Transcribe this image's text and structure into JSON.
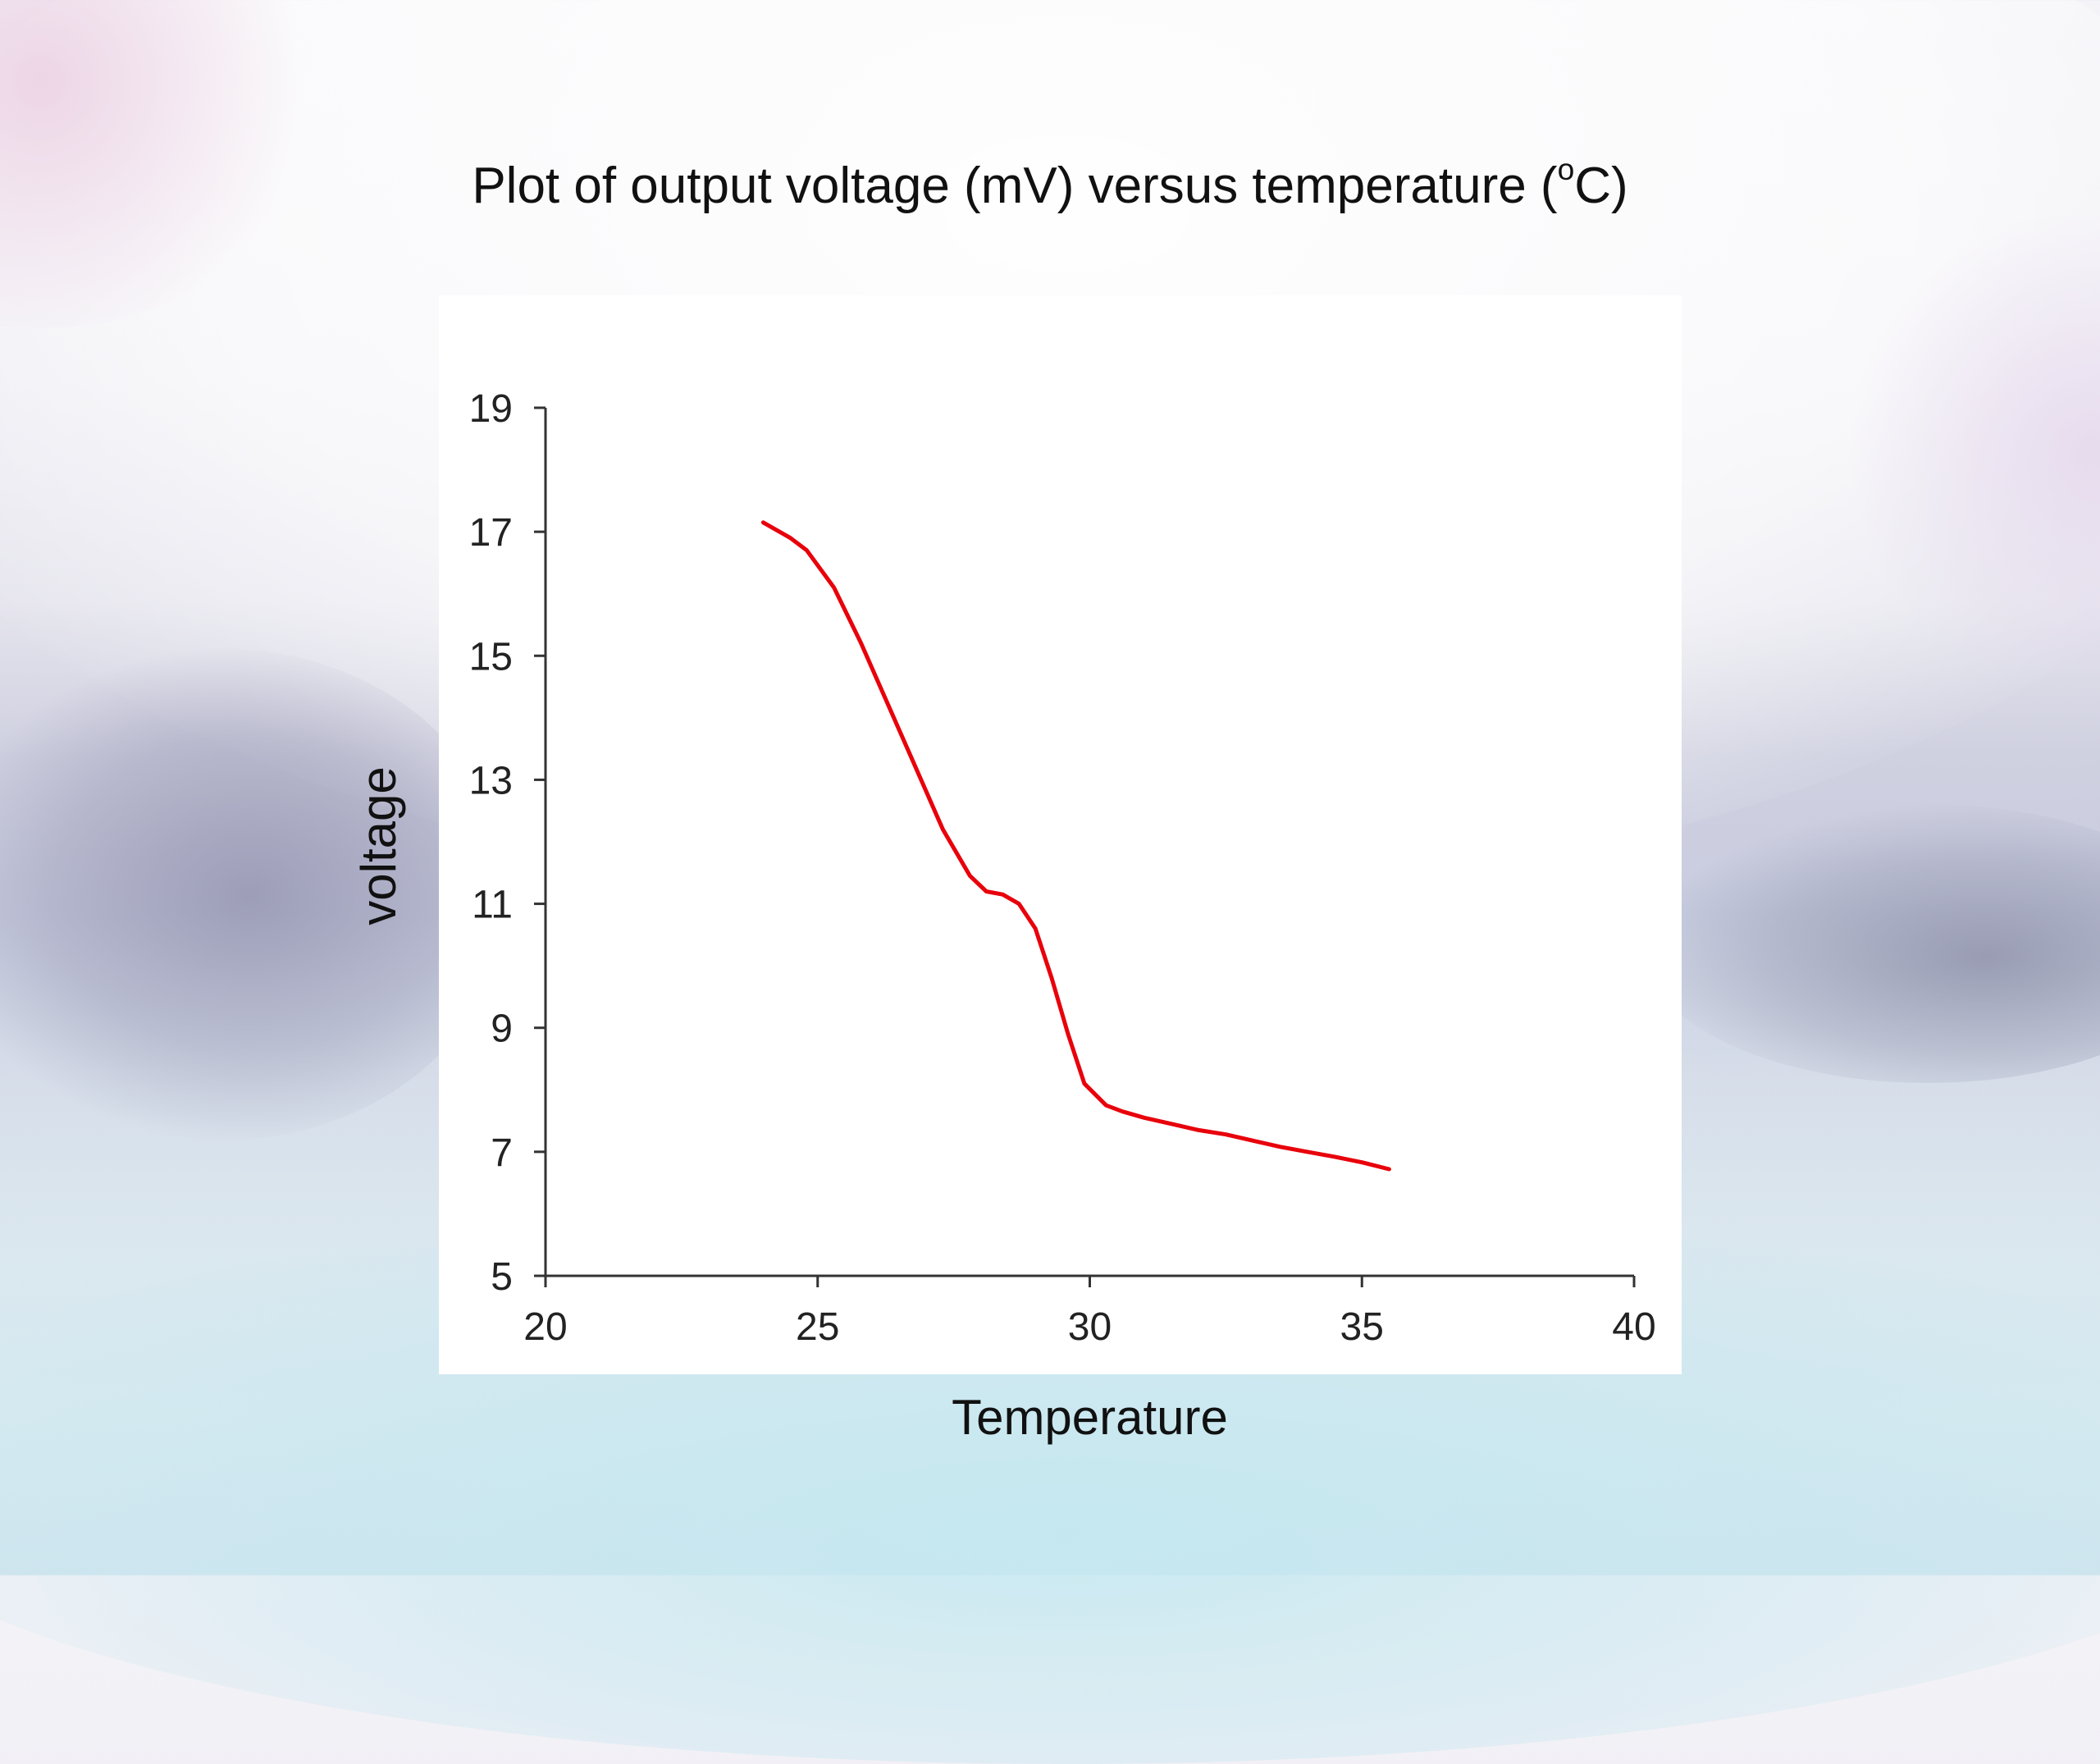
{
  "title": {
    "prefix": "Plot of output voltage (mV)  versus temperature (",
    "superscript": "o",
    "suffix": "C)"
  },
  "chart_data": {
    "type": "line",
    "xlabel": "Temperature",
    "ylabel": "voltage",
    "xlim": [
      20,
      40
    ],
    "ylim": [
      5,
      19
    ],
    "xticks": [
      20,
      25,
      30,
      35,
      40
    ],
    "yticks": [
      5,
      7,
      9,
      11,
      13,
      15,
      17,
      19
    ],
    "grid": false,
    "series": [
      {
        "color": "#e8000b",
        "x": [
          24.0,
          24.5,
          24.8,
          25.3,
          25.8,
          26.3,
          26.8,
          27.3,
          27.8,
          28.1,
          28.4,
          28.7,
          29.0,
          29.3,
          29.6,
          29.9,
          30.3,
          30.6,
          31.0,
          31.5,
          32.0,
          32.5,
          33.0,
          33.5,
          34.0,
          34.5,
          35.0,
          35.5
        ],
        "y": [
          17.15,
          16.9,
          16.7,
          16.1,
          15.2,
          14.2,
          13.2,
          12.2,
          11.45,
          11.2,
          11.15,
          11.0,
          10.6,
          9.8,
          8.9,
          8.1,
          7.75,
          7.65,
          7.55,
          7.45,
          7.35,
          7.28,
          7.18,
          7.08,
          7.0,
          6.92,
          6.83,
          6.72
        ]
      }
    ]
  }
}
